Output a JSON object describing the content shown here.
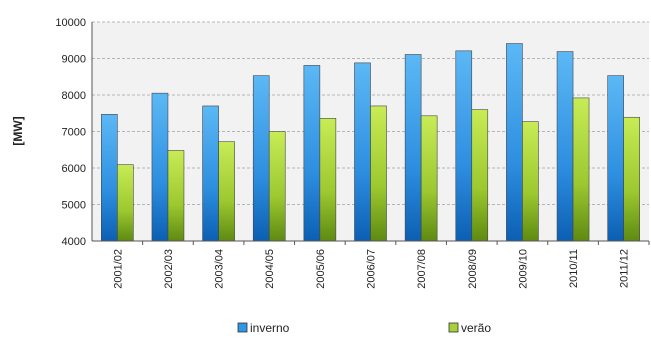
{
  "chart_data": {
    "type": "bar",
    "title": "",
    "xlabel": "",
    "ylabel": "[MW]",
    "ylim": [
      4000,
      10000
    ],
    "yticks": [
      4000,
      5000,
      6000,
      7000,
      8000,
      9000,
      10000
    ],
    "grid": true,
    "legend_position": "bottom",
    "categories": [
      "2001/02",
      "2002/03",
      "2003/04",
      "2004/05",
      "2005/06",
      "2006/07",
      "2007/08",
      "2008/09",
      "2009/10",
      "2010/11",
      "2011/12"
    ],
    "series": [
      {
        "name": "inverno",
        "color": "#2e97e6",
        "values": [
          7470,
          8050,
          7700,
          8530,
          8810,
          8880,
          9110,
          9210,
          9410,
          9190,
          8530
        ]
      },
      {
        "name": "verão",
        "color": "#a6d13a",
        "values": [
          6090,
          6480,
          6720,
          7000,
          7360,
          7700,
          7430,
          7600,
          7270,
          7920,
          7390
        ]
      }
    ]
  }
}
